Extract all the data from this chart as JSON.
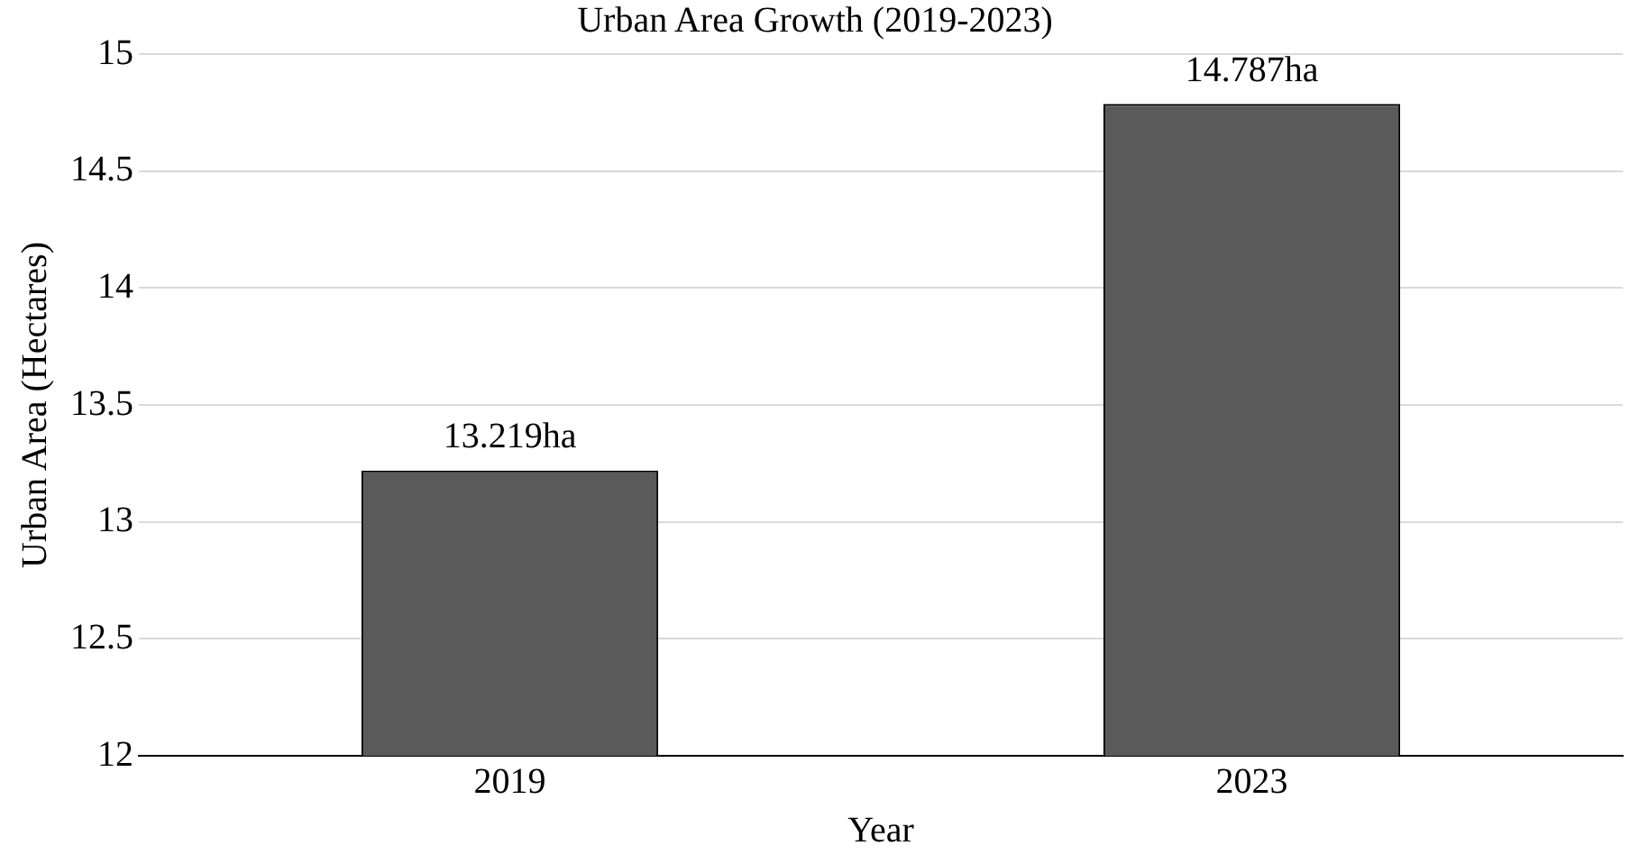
{
  "chart_data": {
    "type": "bar",
    "title": "Urban Area Growth (2019-2023)",
    "xlabel": "Year",
    "ylabel": "Urban Area (Hectares)",
    "categories": [
      "2019",
      "2023"
    ],
    "values": [
      13.219,
      14.787
    ],
    "value_labels": [
      "13.219ha",
      "14.787ha"
    ],
    "color": "#5a5a5a",
    "ylim": [
      12,
      15
    ],
    "yticks": [
      12,
      12.5,
      13,
      13.5,
      14,
      14.5,
      15
    ],
    "grid": "y",
    "legend": false
  }
}
